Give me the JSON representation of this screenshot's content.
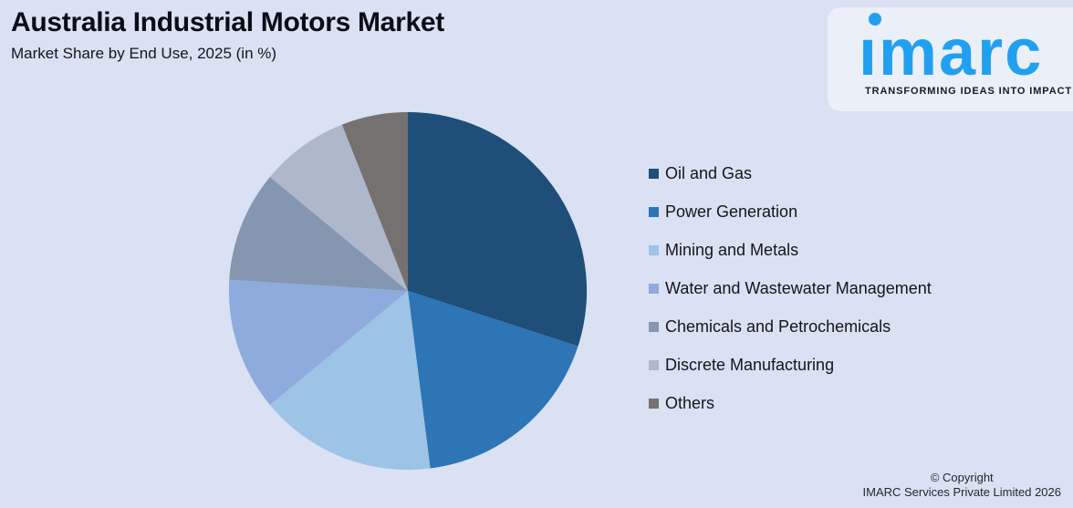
{
  "header": {
    "title": "Australia Industrial Motors Market",
    "subtitle": "Market Share by End Use, 2025 (in %)"
  },
  "logo": {
    "text": "imarc",
    "tagline": "TRANSFORMING IDEAS INTO IMPACT"
  },
  "footer": {
    "copyright_line1": "© Copyright",
    "copyright_line2": "IMARC Services Private Limited 2026"
  },
  "colors": {
    "background": "#D9E1F2",
    "logo_panel": "#EBEFF8",
    "logo_blue": "#22A0F0",
    "text_dark": "#0C0C14"
  },
  "chart_data": {
    "type": "pie",
    "title": "Australia Industrial Motors Market",
    "subtitle": "Market Share by End Use, 2025 (in %)",
    "unit": "%",
    "start_angle_deg": 0,
    "direction": "clockwise",
    "legend_position": "right",
    "data_labels_shown": false,
    "series": [
      {
        "name": "Oil and Gas",
        "value": 30,
        "color": "#1F4E79"
      },
      {
        "name": "Power Generation",
        "value": 18,
        "color": "#2E75B6"
      },
      {
        "name": "Mining and Metals",
        "value": 16,
        "color": "#9DC3E6"
      },
      {
        "name": "Water and Wastewater Management",
        "value": 12,
        "color": "#8FAADC"
      },
      {
        "name": "Chemicals and Petrochemicals",
        "value": 10,
        "color": "#8496B0"
      },
      {
        "name": "Discrete Manufacturing",
        "value": 8,
        "color": "#ADB9CA"
      },
      {
        "name": "Others",
        "value": 6,
        "color": "#767171"
      }
    ]
  }
}
